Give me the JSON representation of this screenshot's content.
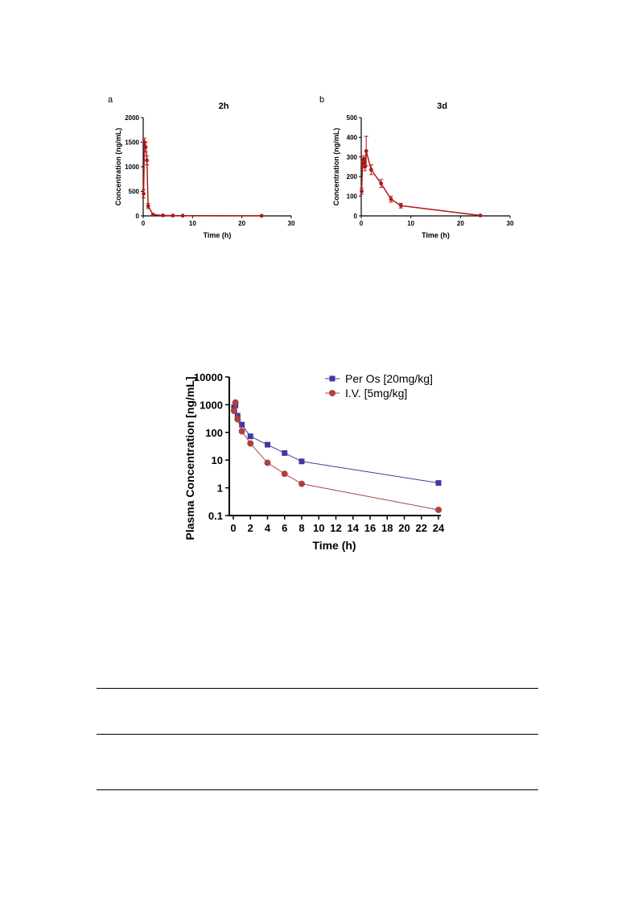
{
  "figure_a": {
    "letter": "a"
  },
  "figure_b": {
    "letter": "b"
  },
  "chart_data": [
    {
      "type": "line",
      "title": "2h",
      "xlabel": "Time (h)",
      "ylabel": "Concentration (ng/mL)",
      "xlim": [
        0,
        30
      ],
      "ylim": [
        0,
        2000
      ],
      "xticks": [
        0,
        10,
        20,
        30
      ],
      "yticks": [
        0,
        500,
        1000,
        1500,
        2000
      ],
      "color": "#b01818",
      "series": [
        {
          "x": [
            0.083,
            0.25,
            0.5,
            0.75,
            1,
            2,
            4,
            6,
            8,
            24
          ],
          "y": [
            450,
            1500,
            1400,
            1130,
            200,
            25,
            10,
            6,
            4,
            2
          ],
          "err": [
            80,
            80,
            100,
            90,
            50,
            8,
            4,
            3,
            2,
            1
          ]
        }
      ],
      "grid": false
    },
    {
      "type": "line",
      "title": "3d",
      "xlabel": "Time (h)",
      "ylabel": "Concentration (ng/mL)",
      "xlim": [
        0,
        30
      ],
      "ylim": [
        0,
        500
      ],
      "xticks": [
        0,
        10,
        20,
        30
      ],
      "yticks": [
        0,
        100,
        200,
        300,
        400,
        500
      ],
      "color": "#b01818",
      "series": [
        {
          "x": [
            0.083,
            0.25,
            0.5,
            0.75,
            1,
            2,
            4,
            6,
            8,
            24
          ],
          "y": [
            125,
            265,
            290,
            250,
            330,
            235,
            165,
            85,
            52,
            2
          ],
          "err": [
            15,
            20,
            15,
            20,
            75,
            25,
            20,
            15,
            12,
            2
          ]
        }
      ],
      "grid": false
    },
    {
      "type": "line",
      "title": "",
      "xlabel": "Time (h)",
      "ylabel": "Plasma Concentration [ng/mL]",
      "yscale": "log",
      "xlim": [
        0,
        24
      ],
      "ylim": [
        0.1,
        10000
      ],
      "xticks": [
        0,
        2,
        4,
        6,
        8,
        10,
        12,
        14,
        16,
        18,
        20,
        22,
        24
      ],
      "yticks": [
        0.1,
        1,
        10,
        100,
        1000,
        10000
      ],
      "ytick_labels": [
        "0.1",
        "1",
        "10",
        "100",
        "1000",
        "10000"
      ],
      "legend": "top-right",
      "grid": false,
      "series": [
        {
          "name": "Per Os [20mg/kg]",
          "color": "#3f3aa0",
          "marker": "square",
          "x": [
            0.083,
            0.25,
            0.5,
            1,
            2,
            4,
            6,
            8,
            24
          ],
          "y": [
            800,
            950,
            400,
            190,
            72,
            36,
            18,
            9,
            1.5
          ]
        },
        {
          "name": "I.V. [5mg/kg]",
          "color": "#b04040",
          "marker": "circle",
          "x": [
            0.083,
            0.25,
            0.5,
            1,
            2,
            4,
            6,
            8,
            24
          ],
          "y": [
            600,
            1200,
            300,
            110,
            40,
            8,
            3.2,
            1.4,
            0.16
          ],
          "err": [
            0,
            200,
            40,
            15,
            8,
            1.5,
            0.4,
            0.2,
            0.02
          ]
        }
      ]
    }
  ]
}
